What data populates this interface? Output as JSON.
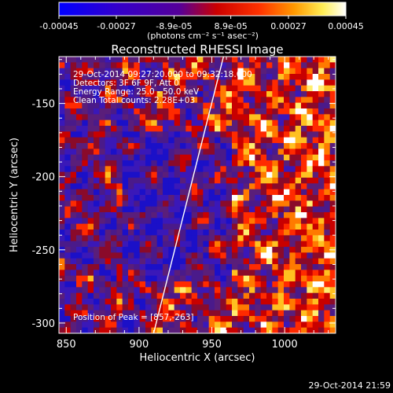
{
  "colorbar": {
    "ticks": [
      "-0.00045",
      "-0.00027",
      "-8.9e-05",
      "8.9e-05",
      "0.00027",
      "0.00045"
    ],
    "tick_values": [
      -0.00045,
      -0.00027,
      -8.9e-05,
      8.9e-05,
      0.00027,
      0.00045
    ],
    "range": [
      -0.00045,
      0.00045
    ],
    "units": "(photons cm⁻² s⁻¹ asec⁻²)",
    "colors": [
      "#0000ff",
      "#6600cc",
      "#ff0000",
      "#ff9900",
      "#ffff66",
      "#ffffff"
    ]
  },
  "chart_data": {
    "type": "heatmap",
    "title": "Reconstructed RHESSI Image",
    "xlabel": "Heliocentric X (arcsec)",
    "ylabel": "Heliocentric Y (arcsec)",
    "xlim": [
      845,
      1035
    ],
    "ylim": [
      -307,
      -118
    ],
    "xticks": [
      850,
      900,
      950,
      1000
    ],
    "yticks": [
      -150,
      -200,
      -250,
      -300
    ],
    "annotations": [
      "29-Oct-2014 09:27:20.000 to 09:32:18.000",
      "Detectors: 3F 6F 9F, Att 0",
      "Energy Range: 25.0 - 50.0 keV",
      "Clean     Total counts: 2.28E+03"
    ],
    "peak_label": "Position of Peak = [857,-263]",
    "limb_line": {
      "from": [
        910,
        -307
      ],
      "to": [
        958,
        -118
      ]
    }
  },
  "footer": {
    "timestamp": "29-Oct-2014 21:59"
  }
}
